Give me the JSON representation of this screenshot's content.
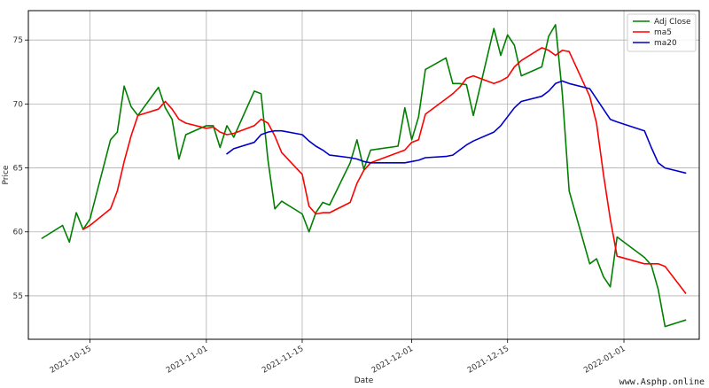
{
  "chart_data": {
    "type": "line",
    "xlabel": "Date",
    "ylabel": "Price",
    "x_range": [
      "2021-10-06",
      "2022-01-12"
    ],
    "ylim": [
      51.6,
      77.3
    ],
    "grid": true,
    "legend_position": "top-right",
    "x_ticks": [
      {
        "date": "2021-10-15",
        "label": "2021-10-15"
      },
      {
        "date": "2021-11-01",
        "label": "2021-11-01"
      },
      {
        "date": "2021-11-15",
        "label": "2021-11-15"
      },
      {
        "date": "2021-12-01",
        "label": "2021-12-01"
      },
      {
        "date": "2021-12-15",
        "label": "2021-12-15"
      },
      {
        "date": "2022-01-01",
        "label": "2022-01-01"
      }
    ],
    "y_ticks": [
      55,
      60,
      65,
      70,
      75
    ],
    "series": [
      {
        "name": "Adj Close",
        "color": "#008000",
        "points": [
          [
            "2021-10-08",
            59.5
          ],
          [
            "2021-10-11",
            60.5
          ],
          [
            "2021-10-12",
            59.2
          ],
          [
            "2021-10-13",
            61.5
          ],
          [
            "2021-10-14",
            60.2
          ],
          [
            "2021-10-15",
            61.0
          ],
          [
            "2021-10-18",
            67.2
          ],
          [
            "2021-10-19",
            67.8
          ],
          [
            "2021-10-20",
            71.4
          ],
          [
            "2021-10-21",
            69.8
          ],
          [
            "2021-10-22",
            69.1
          ],
          [
            "2021-10-25",
            71.3
          ],
          [
            "2021-10-26",
            69.7
          ],
          [
            "2021-10-27",
            68.8
          ],
          [
            "2021-10-28",
            65.7
          ],
          [
            "2021-10-29",
            67.6
          ],
          [
            "2021-11-01",
            68.3
          ],
          [
            "2021-11-02",
            68.3
          ],
          [
            "2021-11-03",
            66.6
          ],
          [
            "2021-11-04",
            68.3
          ],
          [
            "2021-11-05",
            67.4
          ],
          [
            "2021-11-08",
            71.0
          ],
          [
            "2021-11-09",
            70.8
          ],
          [
            "2021-11-10",
            65.6
          ],
          [
            "2021-11-11",
            61.8
          ],
          [
            "2021-11-12",
            62.4
          ],
          [
            "2021-11-15",
            61.4
          ],
          [
            "2021-11-16",
            60.0
          ],
          [
            "2021-11-17",
            61.5
          ],
          [
            "2021-11-18",
            62.3
          ],
          [
            "2021-11-19",
            62.1
          ],
          [
            "2021-11-22",
            65.4
          ],
          [
            "2021-11-23",
            67.2
          ],
          [
            "2021-11-24",
            64.9
          ],
          [
            "2021-11-25",
            66.4
          ],
          [
            "2021-11-29",
            66.7
          ],
          [
            "2021-11-30",
            69.7
          ],
          [
            "2021-12-01",
            67.2
          ],
          [
            "2021-12-02",
            69.0
          ],
          [
            "2021-12-03",
            72.7
          ],
          [
            "2021-12-06",
            73.6
          ],
          [
            "2021-12-07",
            71.6
          ],
          [
            "2021-12-08",
            71.6
          ],
          [
            "2021-12-09",
            71.5
          ],
          [
            "2021-12-10",
            69.1
          ],
          [
            "2021-12-13",
            75.9
          ],
          [
            "2021-12-14",
            73.8
          ],
          [
            "2021-12-15",
            75.4
          ],
          [
            "2021-12-16",
            74.6
          ],
          [
            "2021-12-17",
            72.2
          ],
          [
            "2021-12-20",
            72.9
          ],
          [
            "2021-12-21",
            75.3
          ],
          [
            "2021-12-22",
            76.2
          ],
          [
            "2021-12-23",
            70.8
          ],
          [
            "2021-12-24",
            63.2
          ],
          [
            "2021-12-27",
            57.5
          ],
          [
            "2021-12-28",
            57.9
          ],
          [
            "2021-12-29",
            56.5
          ],
          [
            "2021-12-30",
            55.7
          ],
          [
            "2021-12-31",
            59.6
          ],
          [
            "2022-01-04",
            58.0
          ],
          [
            "2022-01-05",
            57.4
          ],
          [
            "2022-01-06",
            55.5
          ],
          [
            "2022-01-07",
            52.6
          ],
          [
            "2022-01-10",
            53.1
          ]
        ]
      },
      {
        "name": "ma5",
        "color": "#ff0000",
        "points": [
          [
            "2021-10-14",
            60.2
          ],
          [
            "2021-10-15",
            60.5
          ],
          [
            "2021-10-18",
            61.8
          ],
          [
            "2021-10-19",
            63.2
          ],
          [
            "2021-10-20",
            65.5
          ],
          [
            "2021-10-21",
            67.5
          ],
          [
            "2021-10-22",
            69.1
          ],
          [
            "2021-10-25",
            69.6
          ],
          [
            "2021-10-26",
            70.2
          ],
          [
            "2021-10-27",
            69.6
          ],
          [
            "2021-10-28",
            68.8
          ],
          [
            "2021-10-29",
            68.5
          ],
          [
            "2021-11-01",
            68.1
          ],
          [
            "2021-11-02",
            68.2
          ],
          [
            "2021-11-03",
            67.8
          ],
          [
            "2021-11-04",
            67.6
          ],
          [
            "2021-11-05",
            67.7
          ],
          [
            "2021-11-08",
            68.3
          ],
          [
            "2021-11-09",
            68.8
          ],
          [
            "2021-11-10",
            68.5
          ],
          [
            "2021-11-11",
            67.5
          ],
          [
            "2021-11-12",
            66.2
          ],
          [
            "2021-11-15",
            64.5
          ],
          [
            "2021-11-16",
            62.0
          ],
          [
            "2021-11-17",
            61.4
          ],
          [
            "2021-11-18",
            61.5
          ],
          [
            "2021-11-19",
            61.5
          ],
          [
            "2021-11-22",
            62.3
          ],
          [
            "2021-11-23",
            63.8
          ],
          [
            "2021-11-24",
            64.8
          ],
          [
            "2021-11-25",
            65.4
          ],
          [
            "2021-11-29",
            66.2
          ],
          [
            "2021-11-30",
            66.4
          ],
          [
            "2021-12-01",
            67.0
          ],
          [
            "2021-12-02",
            67.2
          ],
          [
            "2021-12-03",
            69.2
          ],
          [
            "2021-12-06",
            70.4
          ],
          [
            "2021-12-07",
            70.8
          ],
          [
            "2021-12-08",
            71.3
          ],
          [
            "2021-12-09",
            72.0
          ],
          [
            "2021-12-10",
            72.2
          ],
          [
            "2021-12-13",
            71.6
          ],
          [
            "2021-12-14",
            71.8
          ],
          [
            "2021-12-15",
            72.1
          ],
          [
            "2021-12-16",
            72.9
          ],
          [
            "2021-12-17",
            73.4
          ],
          [
            "2021-12-20",
            74.4
          ],
          [
            "2021-12-21",
            74.2
          ],
          [
            "2021-12-22",
            73.8
          ],
          [
            "2021-12-23",
            74.2
          ],
          [
            "2021-12-24",
            74.1
          ],
          [
            "2021-12-27",
            70.6
          ],
          [
            "2021-12-28",
            68.5
          ],
          [
            "2021-12-29",
            64.5
          ],
          [
            "2021-12-30",
            61.0
          ],
          [
            "2021-12-31",
            58.1
          ],
          [
            "2022-01-04",
            57.5
          ],
          [
            "2022-01-05",
            57.5
          ],
          [
            "2022-01-06",
            57.5
          ],
          [
            "2022-01-07",
            57.3
          ],
          [
            "2022-01-10",
            55.2
          ]
        ]
      },
      {
        "name": "ma20",
        "color": "#0000cc",
        "points": [
          [
            "2021-11-04",
            66.1
          ],
          [
            "2021-11-05",
            66.5
          ],
          [
            "2021-11-08",
            67.0
          ],
          [
            "2021-11-09",
            67.6
          ],
          [
            "2021-11-10",
            67.8
          ],
          [
            "2021-11-11",
            67.9
          ],
          [
            "2021-11-12",
            67.9
          ],
          [
            "2021-11-15",
            67.6
          ],
          [
            "2021-11-16",
            67.1
          ],
          [
            "2021-11-17",
            66.7
          ],
          [
            "2021-11-18",
            66.4
          ],
          [
            "2021-11-19",
            66.0
          ],
          [
            "2021-11-22",
            65.8
          ],
          [
            "2021-11-23",
            65.7
          ],
          [
            "2021-11-24",
            65.5
          ],
          [
            "2021-11-25",
            65.4
          ],
          [
            "2021-11-29",
            65.4
          ],
          [
            "2021-11-30",
            65.4
          ],
          [
            "2021-12-01",
            65.5
          ],
          [
            "2021-12-02",
            65.6
          ],
          [
            "2021-12-03",
            65.8
          ],
          [
            "2021-12-06",
            65.9
          ],
          [
            "2021-12-07",
            66.0
          ],
          [
            "2021-12-08",
            66.4
          ],
          [
            "2021-12-09",
            66.8
          ],
          [
            "2021-12-10",
            67.1
          ],
          [
            "2021-12-13",
            67.8
          ],
          [
            "2021-12-14",
            68.3
          ],
          [
            "2021-12-15",
            69.0
          ],
          [
            "2021-12-16",
            69.7
          ],
          [
            "2021-12-17",
            70.2
          ],
          [
            "2021-12-20",
            70.6
          ],
          [
            "2021-12-21",
            71.0
          ],
          [
            "2021-12-22",
            71.6
          ],
          [
            "2021-12-23",
            71.8
          ],
          [
            "2021-12-24",
            71.6
          ],
          [
            "2021-12-27",
            71.2
          ],
          [
            "2021-12-28",
            70.4
          ],
          [
            "2021-12-29",
            69.6
          ],
          [
            "2021-12-30",
            68.8
          ],
          [
            "2021-12-31",
            68.6
          ],
          [
            "2022-01-04",
            67.9
          ],
          [
            "2022-01-05",
            66.6
          ],
          [
            "2022-01-06",
            65.4
          ],
          [
            "2022-01-07",
            65.0
          ],
          [
            "2022-01-10",
            64.6
          ]
        ]
      }
    ]
  },
  "watermark": {
    "text": "www.Asphp.online"
  }
}
